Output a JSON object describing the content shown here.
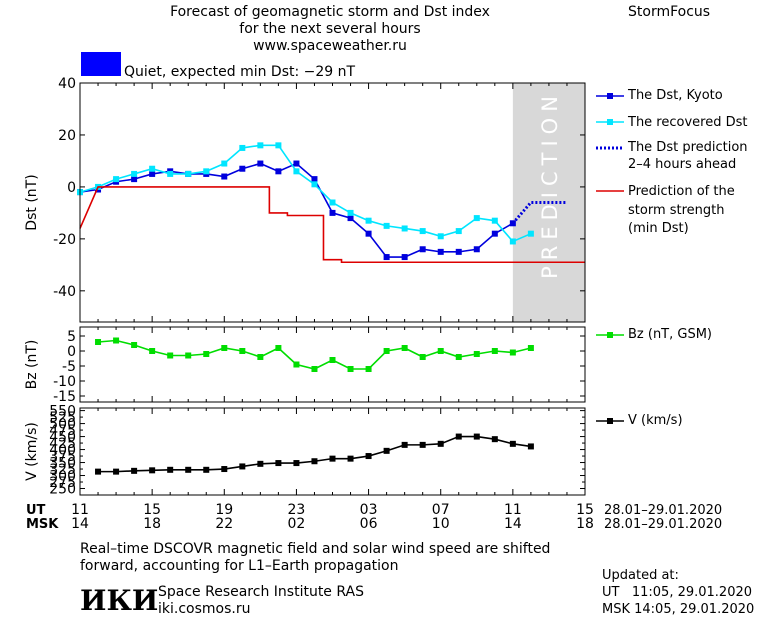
{
  "header": {
    "title_line1": "Forecast of geomagnetic storm and Dst index",
    "title_line2": "for the next several hours",
    "url": "www.spaceweather.ru",
    "brand": "StormFocus",
    "status_text": "Quiet, expected min Dst: −29 nT",
    "status_color": "#0000ff"
  },
  "footer": {
    "note_line1": "Real–time DSCOVR magnetic field and solar wind speed are shifted",
    "note_line2": "forward, accounting for L1–Earth propagation",
    "org_logo": "ИКИ",
    "org_name": "Space Research Institute RAS",
    "org_url": "iki.cosmos.ru",
    "updated_label": "Updated at:",
    "updated_ut": "UT   11:05, 29.01.2020",
    "updated_msk": "MSK 14:05, 29.01.2020"
  },
  "time_axis": {
    "ut_label": "UT",
    "msk_label": "MSK",
    "ut_ticks": [
      "11",
      "15",
      "19",
      "23",
      "03",
      "07",
      "11",
      "15"
    ],
    "msk_ticks": [
      "14",
      "18",
      "22",
      "02",
      "06",
      "10",
      "14",
      "18"
    ],
    "date_ut": "28.01–29.01.2020",
    "date_msk": "28.01–29.01.2020",
    "prediction_label": "PREDICTION"
  },
  "chart_data": [
    {
      "type": "line",
      "panel": "dst",
      "ylabel": "Dst (nT)",
      "ylim": [
        -52,
        40
      ],
      "yticks": [
        40,
        20,
        0,
        -20,
        -40
      ],
      "xlim": [
        0,
        28
      ],
      "x_unit": "hours after 11 UT, 28.01.2020",
      "prediction_region": [
        24,
        28
      ],
      "series": [
        {
          "name": "The Dst, Kyoto",
          "color": "#0000dd",
          "marker": "square",
          "x": [
            0,
            1,
            2,
            3,
            4,
            5,
            6,
            7,
            8,
            9,
            10,
            11,
            12,
            13,
            14,
            15,
            16,
            17,
            18,
            19,
            20,
            21,
            22,
            23,
            24
          ],
          "y": [
            -2,
            -1,
            2,
            3,
            5,
            6,
            5,
            5,
            4,
            7,
            9,
            6,
            9,
            3,
            -10,
            -12,
            -18,
            -27,
            -27,
            -24,
            -25,
            -25,
            -24,
            -18,
            -14
          ]
        },
        {
          "name": "The recovered Dst",
          "color": "#00e5ff",
          "marker": "square",
          "x": [
            0,
            1,
            2,
            3,
            4,
            5,
            6,
            7,
            8,
            9,
            10,
            11,
            12,
            13,
            14,
            15,
            16,
            17,
            18,
            19,
            20,
            21,
            22,
            23,
            24,
            25
          ],
          "y": [
            -2,
            0,
            3,
            5,
            7,
            5,
            5,
            6,
            9,
            15,
            16,
            16,
            6,
            1,
            -6,
            -10,
            -13,
            -15,
            -16,
            -17,
            -19,
            -17,
            -12,
            -13,
            -21,
            -18
          ]
        },
        {
          "name": "The Dst prediction 2–4 hours ahead",
          "color": "#0000dd",
          "style": "dotted",
          "x": [
            24,
            25,
            26,
            27
          ],
          "y": [
            -14,
            -6,
            -6,
            -6
          ]
        },
        {
          "name": "Prediction of the storm strength (min Dst)",
          "color": "#dd0000",
          "style": "step",
          "x": [
            0,
            1,
            2,
            3,
            4,
            5,
            6,
            7,
            8,
            9,
            10,
            11,
            12,
            13,
            14,
            15,
            16,
            17,
            18,
            19,
            20,
            21,
            22,
            23,
            24,
            25,
            26,
            27,
            28
          ],
          "y": [
            -16,
            0,
            0,
            0,
            0,
            0,
            0,
            0,
            0,
            0,
            0,
            -10,
            -11,
            -11,
            -28,
            -29,
            -29,
            -29,
            -29,
            -29,
            -29,
            -29,
            -29,
            -29,
            -29,
            -29,
            -29,
            -29,
            -29
          ]
        }
      ]
    },
    {
      "type": "line",
      "panel": "bz",
      "ylabel": "Bz (nT)",
      "ylim": [
        -17,
        8
      ],
      "yticks": [
        5,
        0,
        -5,
        -10,
        -15
      ],
      "xlim": [
        0,
        28
      ],
      "series": [
        {
          "name": "Bz (nT, GSM)",
          "color": "#00dd00",
          "marker": "square",
          "x": [
            1,
            2,
            3,
            4,
            5,
            6,
            7,
            8,
            9,
            10,
            11,
            12,
            13,
            14,
            15,
            16,
            17,
            18,
            19,
            20,
            21,
            22,
            23,
            24,
            25
          ],
          "y": [
            3,
            3.5,
            2,
            0,
            -1.5,
            -1.5,
            -1,
            1,
            0,
            -2,
            1,
            -4.5,
            -6,
            -3,
            -6,
            -6,
            0,
            1,
            -2,
            0,
            -2,
            -1,
            0,
            -0.5,
            1
          ]
        }
      ]
    },
    {
      "type": "line",
      "panel": "v",
      "ylabel": "V (km/s)",
      "ylim": [
        225,
        560
      ],
      "yticks": [
        550,
        500,
        450,
        400,
        350,
        300,
        250
      ],
      "yticks_minor": [
        525,
        475,
        425,
        375,
        325,
        275
      ],
      "xlim": [
        0,
        28
      ],
      "series": [
        {
          "name": "V (km/s)",
          "color": "#000000",
          "marker": "square",
          "x": [
            1,
            2,
            3,
            4,
            5,
            6,
            7,
            8,
            9,
            10,
            11,
            12,
            13,
            14,
            15,
            16,
            17,
            18,
            19,
            20,
            21,
            22,
            23,
            24,
            25
          ],
          "y": [
            315,
            315,
            318,
            320,
            322,
            322,
            322,
            325,
            335,
            345,
            348,
            348,
            355,
            365,
            365,
            375,
            395,
            418,
            418,
            422,
            450,
            450,
            440,
            422,
            412
          ]
        }
      ]
    }
  ],
  "legend": {
    "dst_kyoto": "The Dst, Kyoto",
    "recovered": "The recovered Dst",
    "prediction_line1": "The Dst prediction",
    "prediction_line2": "2–4 hours ahead",
    "storm_line1": "Prediction of the",
    "storm_line2": "storm strength",
    "storm_line3": "(min Dst)",
    "bz": "Bz (nT, GSM)",
    "v": "V (km/s)"
  }
}
